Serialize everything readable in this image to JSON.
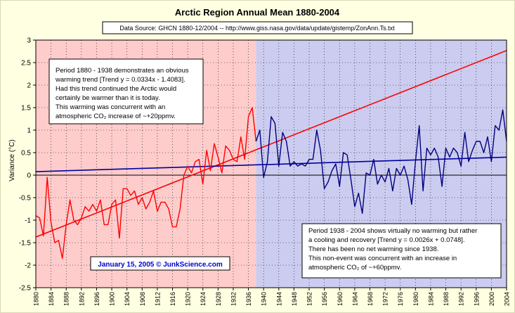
{
  "chart_data": {
    "type": "line",
    "title": "Arctic Region Annual Mean 1880-2004",
    "source": "Data Source: GHCN 1880-12/2004 -- http://www.giss.nasa.gov/data/update/gistemp/ZonAnn.Ts.txt",
    "ylabel": "Variance (°C)",
    "xlabel": "",
    "xlim": [
      1880,
      2004
    ],
    "ylim": [
      -2.5,
      3
    ],
    "yticks": [
      "3",
      "2.5",
      "2",
      "1.5",
      "1",
      "0.5",
      "0",
      "-0.5",
      "-1",
      "-1.5",
      "-2",
      "-2.5"
    ],
    "xticks": [
      "1880",
      "1884",
      "1888",
      "1892",
      "1896",
      "1900",
      "1904",
      "1908",
      "1912",
      "1916",
      "1920",
      "1924",
      "1928",
      "1932",
      "1936",
      "1940",
      "1944",
      "1948",
      "1952",
      "1956",
      "1960",
      "1964",
      "1968",
      "1972",
      "1976",
      "1980",
      "1984",
      "1988",
      "1992",
      "1996",
      "2000",
      "2004"
    ],
    "grid": true,
    "colors": {
      "early": "#ff0000",
      "late": "#000080",
      "early_bg": "#ffcccc",
      "late_bg": "#ccccf0",
      "trend_late": "#0000a0"
    },
    "series": [
      {
        "x": [
          1880,
          1881,
          1882,
          1883,
          1884,
          1885,
          1886,
          1887,
          1888,
          1889,
          1890,
          1891,
          1892,
          1893,
          1894,
          1895,
          1896,
          1897,
          1898,
          1899,
          1900,
          1901,
          1902,
          1903,
          1904,
          1905,
          1906,
          1907,
          1908,
          1909,
          1910,
          1911,
          1912,
          1913,
          1914,
          1915,
          1916,
          1917,
          1918,
          1919,
          1920,
          1921,
          1922,
          1923,
          1924,
          1925,
          1926,
          1927,
          1928,
          1929,
          1930,
          1931,
          1932,
          1933,
          1934,
          1935,
          1936,
          1937,
          1938
        ],
        "values": [
          -0.9,
          -0.95,
          -1.35,
          -0.05,
          -1.05,
          -1.5,
          -1.45,
          -1.85,
          -1.1,
          -0.55,
          -1.0,
          -1.1,
          -0.95,
          -0.7,
          -0.8,
          -0.65,
          -0.8,
          -0.55,
          -1.1,
          -1.1,
          -0.65,
          -0.55,
          -1.4,
          -0.3,
          -0.3,
          -0.45,
          -0.35,
          -0.65,
          -0.5,
          -0.75,
          -0.6,
          -0.35,
          -0.8,
          -0.6,
          -0.6,
          -0.75,
          -1.15,
          -1.15,
          -0.75,
          0.0,
          0.2,
          0.05,
          0.3,
          0.35,
          -0.2,
          0.55,
          0.1,
          0.7,
          0.4,
          0.05,
          0.65,
          0.55,
          0.35,
          0.3,
          0.85,
          0.35,
          1.3,
          1.5,
          0.75
        ]
      },
      {
        "x": [
          1938,
          1939,
          1940,
          1941,
          1942,
          1943,
          1944,
          1945,
          1946,
          1947,
          1948,
          1949,
          1950,
          1951,
          1952,
          1953,
          1954,
          1955,
          1956,
          1957,
          1958,
          1959,
          1960,
          1961,
          1962,
          1963,
          1964,
          1965,
          1966,
          1967,
          1968,
          1969,
          1970,
          1971,
          1972,
          1973,
          1974,
          1975,
          1976,
          1977,
          1978,
          1979,
          1980,
          1981,
          1982,
          1983,
          1984,
          1985,
          1986,
          1987,
          1988,
          1989,
          1990,
          1991,
          1992,
          1993,
          1994,
          1995,
          1996,
          1997,
          1998,
          1999,
          2000,
          2001,
          2002,
          2003,
          2004
        ],
        "values": [
          0.75,
          1.0,
          -0.05,
          0.3,
          1.3,
          1.15,
          0.2,
          0.95,
          0.75,
          0.2,
          0.3,
          0.2,
          0.25,
          0.2,
          0.35,
          0.35,
          1.0,
          0.55,
          -0.3,
          -0.15,
          0.1,
          0.25,
          -0.25,
          0.5,
          0.45,
          -0.1,
          -0.7,
          -0.4,
          -0.85,
          0.05,
          0.0,
          0.35,
          -0.2,
          0.0,
          -0.15,
          0.15,
          -0.35,
          0.15,
          0.0,
          0.2,
          -0.1,
          -0.65,
          0.3,
          1.1,
          -0.35,
          0.6,
          0.45,
          0.6,
          0.4,
          -0.25,
          0.6,
          0.4,
          0.6,
          0.5,
          0.2,
          0.95,
          0.3,
          0.55,
          0.75,
          0.75,
          0.5,
          0.85,
          0.3,
          1.1,
          1.0,
          1.45,
          0.75
        ]
      }
    ],
    "trendlines": [
      {
        "equation": "y = 0.0334x - 1.4083",
        "x": [
          1880,
          2004
        ],
        "values": [
          -1.375,
          2.767
        ]
      },
      {
        "equation": "y = 0.0026x + 0.0748",
        "x": [
          1880,
          2004
        ],
        "values": [
          0.077,
          0.4
        ]
      }
    ],
    "annotations": {
      "early": [
        "Period 1880 - 1938 demonstrates an obvious",
        "warming trend [Trend y = 0.0334x - 1.4083].",
        "Had this trend continued the Arctic would",
        "certainly be warmer than it is today.",
        "This warming was concurrent with an",
        "atmospheric CO₂ increase of ~+20ppmv."
      ],
      "late": [
        "Period 1938 - 2004 shows virtually no warming but rather",
        "a cooling and recovery [Trend y = 0.0026x + 0.0748].",
        "There has been no net warming since 1938.",
        "This non-event was concurrent with an increase in",
        "atmospheric CO₂ of ~+60ppmv."
      ],
      "credit": "January 15, 2005 © JunkScience.com"
    }
  }
}
